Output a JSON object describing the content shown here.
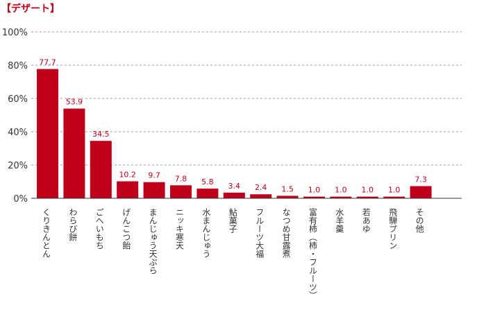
{
  "title": "【デザート】",
  "colors": {
    "bar": "#c0001a",
    "label": "#c0001a",
    "grid": "#999999",
    "axis": "#333333"
  },
  "chart_data": {
    "type": "bar",
    "title": "【デザート】",
    "categories": [
      "くりきんとん",
      "わらび餅",
      "ごへいもち",
      "げんこつ飴",
      "まんじゅう天ぷら",
      "ニッキ寒天",
      "水まんじゅう",
      "鮎菓子",
      "フルーツ大福",
      "なつめ甘露煮",
      "富有柿（柿・フルーツ）",
      "水羊羹",
      "若あゆ",
      "飛騨プリン",
      "その他"
    ],
    "values": [
      77.7,
      53.9,
      34.5,
      10.2,
      9.7,
      7.8,
      5.8,
      3.4,
      2.4,
      1.5,
      1.0,
      1.0,
      1.0,
      1.0,
      7.3
    ],
    "value_labels": [
      "77.7",
      "53.9",
      "34.5",
      "10.2",
      "9.7",
      "7.8",
      "5.8",
      "3.4",
      "2.4",
      "1.5",
      "1.0",
      "1.0",
      "1.0",
      "1.0",
      "7.3"
    ],
    "yticks": [
      "100%",
      "80%",
      "60%",
      "40%",
      "20%",
      "0%"
    ],
    "ylim": [
      0,
      100
    ],
    "grid": "dashed horizontal",
    "xlabel": "",
    "ylabel": ""
  }
}
